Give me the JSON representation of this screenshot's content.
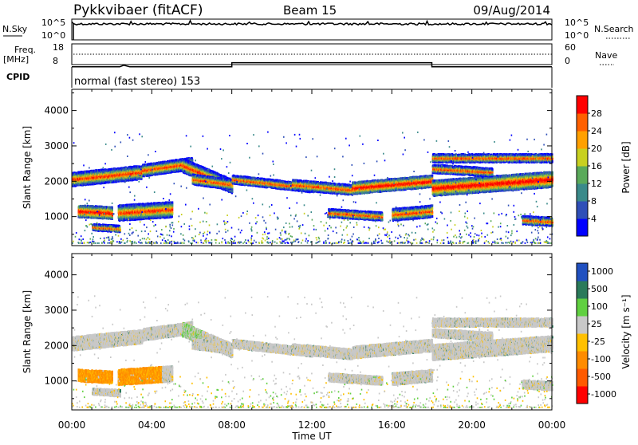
{
  "header": {
    "radar": "Pykkvibaer (fitACF)",
    "beam": "Beam 15",
    "date": "09/Aug/2014"
  },
  "sky_panel": {
    "left_label": "N.Sky",
    "right_label": "N.Search",
    "ticks": [
      "10^5",
      "10^0"
    ]
  },
  "freq_panel": {
    "left_label_1": "Freq.",
    "left_label_2": "[MHz]",
    "left_ticks": [
      "18",
      "8"
    ],
    "right_label": "Nave",
    "right_ticks": [
      "60",
      "0"
    ]
  },
  "cpid": {
    "label": "CPID",
    "value": "normal (fast stereo) 153"
  },
  "power_panel": {
    "ylabel": "Slant Range [km]",
    "yticks": [
      "4000",
      "3000",
      "2000",
      "1000"
    ],
    "colorbar_label": "Power [dB]",
    "colorbar_ticks": [
      "28",
      "24",
      "20",
      "16",
      "12",
      "8",
      "4"
    ],
    "colors": [
      "#0000ff",
      "#2f4fb8",
      "#3a8a8a",
      "#5aaa5a",
      "#c8d020",
      "#ffa000",
      "#ff6000",
      "#ff0000"
    ]
  },
  "velocity_panel": {
    "ylabel": "Slant Range [km]",
    "yticks": [
      "4000",
      "3000",
      "2000",
      "1000"
    ],
    "colorbar_label": "Velocity [m s⁻¹]",
    "colorbar_ticks": [
      "1000",
      "500",
      "100",
      "25",
      "-25",
      "-100",
      "-500",
      "-1000"
    ],
    "colors": [
      "#ff0000",
      "#ff5a00",
      "#ff8c00",
      "#ffc000",
      "#c8c8c8",
      "#60d040",
      "#2a7a5a",
      "#2050c0"
    ]
  },
  "time_axis": {
    "ticks": [
      "00:00",
      "04:00",
      "08:00",
      "12:00",
      "16:00",
      "20:00",
      "00:00"
    ],
    "label": "Time UT"
  },
  "chart_data": {
    "type": "heatmap",
    "x_range_hours": [
      0,
      24
    ],
    "y_range_km": [
      180,
      4600
    ],
    "frequency_segments_mhz": [
      {
        "start_h": 0,
        "end_h": 8,
        "value": 10
      },
      {
        "start_h": 8,
        "end_h": 18,
        "value": 12
      },
      {
        "start_h": 18,
        "end_h": 24,
        "value": 10
      }
    ]
  }
}
